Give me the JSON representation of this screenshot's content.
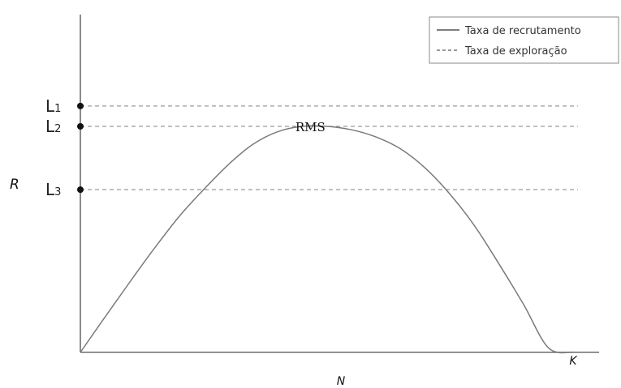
{
  "chart_data": {
    "type": "line",
    "xlabel": "N",
    "ylabel": "R",
    "x_end_label": "K",
    "xlim": [
      0,
      1
    ],
    "ylim": [
      0,
      1.1
    ],
    "grid": false,
    "legend_position": "top-right",
    "legend": [
      {
        "label": "Taxa de recrutamento",
        "style": "solid"
      },
      {
        "label": "Taxa de exploração",
        "style": "dashed"
      }
    ],
    "curve": {
      "name": "Taxa de recrutamento",
      "x": [
        0,
        0.05,
        0.1,
        0.15,
        0.2,
        0.25,
        0.3,
        0.35,
        0.4,
        0.45,
        0.5,
        0.55,
        0.6,
        0.65,
        0.7,
        0.75,
        0.8,
        0.85,
        0.9,
        0.95,
        1.0
      ],
      "y": [
        0,
        0.156,
        0.31,
        0.46,
        0.6,
        0.72,
        0.83,
        0.92,
        0.976,
        1.0,
        1.0,
        0.985,
        0.953,
        0.9,
        0.815,
        0.7,
        0.56,
        0.39,
        0.21,
        0.02,
        0
      ]
    },
    "exploitation_lines": [
      {
        "label_letter": "L",
        "label_subscript": "1",
        "y": 1.09
      },
      {
        "label_letter": "L",
        "label_subscript": "2",
        "y": 1.0
      },
      {
        "label_letter": "L",
        "label_subscript": "3",
        "y": 0.72
      }
    ],
    "annotation": {
      "text": "RMS",
      "x": 0.47,
      "y": 1.0
    },
    "colors": {
      "curve": "#7a7a7a",
      "axis": "#6e6e6e",
      "dashed": "#9a9a9a",
      "point": "#111111",
      "legend_border": "#888888"
    }
  }
}
